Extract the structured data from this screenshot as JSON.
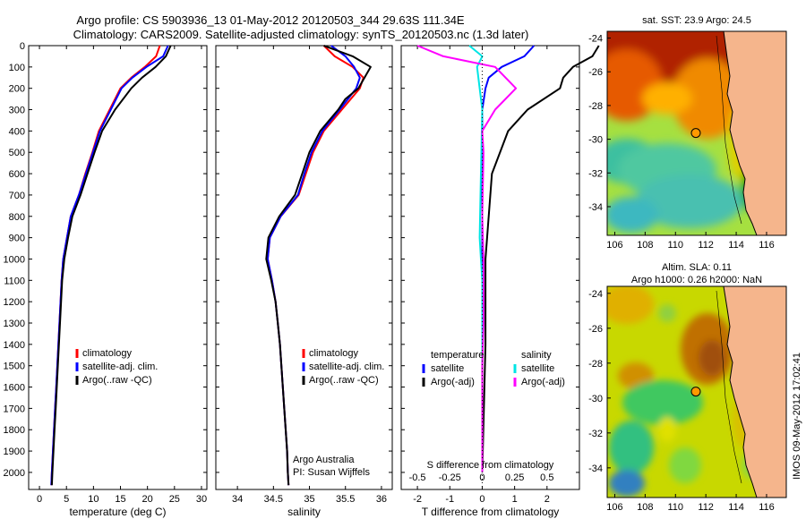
{
  "header": {
    "title_line1": "Argo profile: CS 5903936_13 01-May-2012 20120503_344 29.63S 111.34E",
    "title_line2": "Climatology: CARS2009. Satellite-adjusted climatology: synTS_20120503.nc (1.3d later)"
  },
  "watermark": "IMOS 09-May-2012 17:02:41",
  "chart_data": [
    {
      "type": "line",
      "id": "temperature",
      "xlabel": "temperature (deg C)",
      "xlim": [
        -2,
        31
      ],
      "xticks": [
        0,
        5,
        10,
        15,
        20,
        25,
        30
      ],
      "xtick_labels": [
        "0",
        "5",
        "10",
        "15",
        "20",
        "25",
        "30"
      ],
      "ylim": [
        0,
        2080
      ],
      "y_reversed": true,
      "yticks": [
        0,
        100,
        200,
        300,
        400,
        500,
        600,
        700,
        800,
        900,
        1000,
        1100,
        1200,
        1300,
        1400,
        1500,
        1600,
        1700,
        1800,
        1900,
        2000
      ],
      "ytick_labels": [
        "0",
        "100",
        "200",
        "300",
        "400",
        "500",
        "600",
        "700",
        "800",
        "900",
        "1000",
        "1100",
        "1200",
        "1300",
        "1400",
        "1500",
        "1600",
        "1700",
        "1800",
        "1900",
        "2000"
      ],
      "legend": {
        "position": "lower-center",
        "entries": [
          {
            "label": "climatology",
            "color": "#ff0000"
          },
          {
            "label": "satellite-adj. clim.",
            "color": "#0000ff"
          },
          {
            "label": "Argo(..raw -QC)",
            "color": "#000000"
          }
        ]
      },
      "series": [
        {
          "name": "climatology",
          "color": "#ff0000",
          "points": [
            [
              22.3,
              0
            ],
            [
              21.6,
              50
            ],
            [
              19.5,
              100
            ],
            [
              17,
              150
            ],
            [
              15,
              200
            ],
            [
              13,
              300
            ],
            [
              11,
              400
            ],
            [
              9.8,
              500
            ],
            [
              8.5,
              600
            ],
            [
              7.3,
              700
            ],
            [
              5.8,
              800
            ],
            [
              5.1,
              900
            ],
            [
              4.4,
              1000
            ],
            [
              4.1,
              1100
            ],
            [
              3.9,
              1200
            ],
            [
              3.7,
              1300
            ],
            [
              3.5,
              1400
            ],
            [
              3.3,
              1500
            ],
            [
              3.1,
              1600
            ],
            [
              2.9,
              1700
            ],
            [
              2.7,
              1800
            ],
            [
              2.5,
              1900
            ],
            [
              2.3,
              2000
            ],
            [
              2.2,
              2060
            ]
          ]
        },
        {
          "name": "satellite-adj. clim.",
          "color": "#0000ff",
          "points": [
            [
              23.8,
              0
            ],
            [
              22.9,
              50
            ],
            [
              19.8,
              100
            ],
            [
              17.2,
              150
            ],
            [
              15.2,
              200
            ],
            [
              13.2,
              300
            ],
            [
              11.2,
              400
            ],
            [
              9.9,
              500
            ],
            [
              8.6,
              600
            ],
            [
              7.3,
              700
            ],
            [
              5.8,
              800
            ],
            [
              5.1,
              900
            ],
            [
              4.4,
              1000
            ],
            [
              4.1,
              1100
            ],
            [
              3.9,
              1200
            ],
            [
              3.7,
              1300
            ],
            [
              3.5,
              1400
            ],
            [
              3.3,
              1500
            ],
            [
              3.1,
              1600
            ],
            [
              2.9,
              1700
            ],
            [
              2.7,
              1800
            ],
            [
              2.5,
              1900
            ],
            [
              2.3,
              2000
            ],
            [
              2.2,
              2060
            ]
          ]
        },
        {
          "name": "Argo(..raw -QC)",
          "color": "#000000",
          "points": [
            [
              24.3,
              0
            ],
            [
              23.4,
              50
            ],
            [
              21.5,
              100
            ],
            [
              19,
              150
            ],
            [
              17,
              200
            ],
            [
              14,
              300
            ],
            [
              11.6,
              400
            ],
            [
              10.2,
              500
            ],
            [
              8.9,
              600
            ],
            [
              7.6,
              700
            ],
            [
              6.1,
              800
            ],
            [
              5.3,
              900
            ],
            [
              4.6,
              1000
            ],
            [
              4.2,
              1100
            ],
            [
              4,
              1200
            ],
            [
              3.8,
              1300
            ],
            [
              3.6,
              1400
            ],
            [
              3.4,
              1500
            ],
            [
              3.2,
              1600
            ],
            [
              3,
              1700
            ],
            [
              2.8,
              1800
            ],
            [
              2.6,
              1900
            ],
            [
              2.4,
              2000
            ],
            [
              2.3,
              2060
            ]
          ]
        }
      ]
    },
    {
      "type": "line",
      "id": "salinity",
      "xlabel": "salinity",
      "xlim": [
        33.7,
        36.15
      ],
      "xticks": [
        34,
        34.5,
        35,
        35.5,
        36
      ],
      "xtick_labels": [
        "34",
        "34.5",
        "35",
        "35.5",
        "36"
      ],
      "ylim": [
        0,
        2080
      ],
      "y_reversed": true,
      "legend": {
        "position": "lower-center",
        "entries": [
          {
            "label": "climatology",
            "color": "#ff0000"
          },
          {
            "label": "satellite-adj. clim.",
            "color": "#0000ff"
          },
          {
            "label": "Argo(..raw -QC)",
            "color": "#000000"
          }
        ]
      },
      "annotations": [
        "Argo Australia",
        "PI: Susan Wijffels"
      ],
      "series": [
        {
          "name": "climatology",
          "color": "#ff0000",
          "points": [
            [
              35.2,
              0
            ],
            [
              35.35,
              50
            ],
            [
              35.6,
              100
            ],
            [
              35.75,
              150
            ],
            [
              35.7,
              200
            ],
            [
              35.45,
              300
            ],
            [
              35.2,
              400
            ],
            [
              35.05,
              500
            ],
            [
              34.95,
              600
            ],
            [
              34.85,
              700
            ],
            [
              34.6,
              800
            ],
            [
              34.45,
              900
            ],
            [
              34.42,
              1000
            ],
            [
              34.48,
              1100
            ],
            [
              34.53,
              1200
            ],
            [
              34.56,
              1300
            ],
            [
              34.59,
              1400
            ],
            [
              34.61,
              1500
            ],
            [
              34.63,
              1600
            ],
            [
              34.65,
              1700
            ],
            [
              34.67,
              1800
            ],
            [
              34.69,
              1900
            ],
            [
              34.7,
              2000
            ],
            [
              34.71,
              2060
            ]
          ]
        },
        {
          "name": "satellite-adj. clim.",
          "color": "#0000ff",
          "points": [
            [
              35.3,
              0
            ],
            [
              35.5,
              50
            ],
            [
              35.62,
              100
            ],
            [
              35.7,
              150
            ],
            [
              35.65,
              200
            ],
            [
              35.42,
              300
            ],
            [
              35.18,
              400
            ],
            [
              35.03,
              500
            ],
            [
              34.93,
              600
            ],
            [
              34.84,
              700
            ],
            [
              34.6,
              800
            ],
            [
              34.45,
              900
            ],
            [
              34.42,
              1000
            ],
            [
              34.48,
              1100
            ],
            [
              34.53,
              1200
            ],
            [
              34.56,
              1300
            ],
            [
              34.59,
              1400
            ],
            [
              34.61,
              1500
            ],
            [
              34.63,
              1600
            ],
            [
              34.65,
              1700
            ],
            [
              34.67,
              1800
            ],
            [
              34.69,
              1900
            ],
            [
              34.7,
              2000
            ],
            [
              34.71,
              2060
            ]
          ]
        },
        {
          "name": "Argo(..raw -QC)",
          "color": "#000000",
          "points": [
            [
              35.2,
              0
            ],
            [
              35.6,
              50
            ],
            [
              35.85,
              100
            ],
            [
              35.68,
              200
            ],
            [
              35.5,
              250
            ],
            [
              35.4,
              300
            ],
            [
              35.15,
              400
            ],
            [
              35,
              500
            ],
            [
              34.9,
              600
            ],
            [
              34.8,
              700
            ],
            [
              34.58,
              800
            ],
            [
              34.43,
              900
            ],
            [
              34.4,
              1000
            ],
            [
              34.47,
              1100
            ],
            [
              34.53,
              1200
            ],
            [
              34.56,
              1300
            ],
            [
              34.59,
              1400
            ],
            [
              34.61,
              1500
            ],
            [
              34.63,
              1600
            ],
            [
              34.65,
              1700
            ],
            [
              34.67,
              1800
            ],
            [
              34.69,
              1900
            ],
            [
              34.7,
              2000
            ],
            [
              34.71,
              2060
            ]
          ]
        }
      ]
    },
    {
      "type": "line",
      "id": "difference",
      "xlabel": "T difference from climatology",
      "xlabel_top": "S difference from climatology",
      "xlim": [
        -2.5,
        3
      ],
      "xticks": [
        -2,
        -1,
        0,
        1,
        2
      ],
      "xtick_labels": [
        "-2",
        "-1",
        "0",
        "1",
        "2"
      ],
      "secondary_xticks": [
        -0.5,
        -0.25,
        0,
        0.25,
        0.5
      ],
      "secondary_xtick_labels": [
        "-0.5",
        "-0.25",
        "0",
        "0.25",
        "0.5"
      ],
      "secondary_scale": 4,
      "ylim": [
        0,
        2080
      ],
      "y_reversed": true,
      "legend": {
        "position": "lower-center",
        "temperature_title": "temperature",
        "salinity_title": "salinity",
        "temperature_entries": [
          {
            "label": "satellite",
            "color": "#0000ff"
          },
          {
            "label": "Argo(-adj)",
            "color": "#000000"
          }
        ],
        "salinity_entries": [
          {
            "label": "satellite",
            "color": "#00e5e5"
          },
          {
            "label": "Argo(-adj)",
            "color": "#ff00ff"
          }
        ]
      },
      "series": [
        {
          "name": "T satellite",
          "color": "#0000ff",
          "points": [
            [
              1.6,
              0
            ],
            [
              1.3,
              50
            ],
            [
              0.6,
              100
            ],
            [
              0.2,
              150
            ],
            [
              0.1,
              200
            ],
            [
              0,
              300
            ],
            [
              0,
              500
            ],
            [
              0,
              800
            ],
            [
              0,
              1000
            ],
            [
              0,
              2000
            ]
          ]
        },
        {
          "name": "T Argo(-adj)",
          "color": "#000000",
          "points": [
            [
              3.6,
              0
            ],
            [
              3.4,
              50
            ],
            [
              2.8,
              100
            ],
            [
              2.5,
              150
            ],
            [
              2.4,
              200
            ],
            [
              1.4,
              300
            ],
            [
              0.8,
              400
            ],
            [
              0.3,
              600
            ],
            [
              0.2,
              800
            ],
            [
              0.1,
              1000
            ],
            [
              0.1,
              1400
            ],
            [
              0,
              2000
            ]
          ]
        },
        {
          "name": "S satellite",
          "color": "#00e5e5",
          "points": [
            [
              -0.1,
              0
            ],
            [
              0,
              50
            ],
            [
              -0.04,
              100
            ],
            [
              -0.02,
              200
            ],
            [
              0,
              300
            ],
            [
              -0.01,
              600
            ],
            [
              -0.02,
              900
            ],
            [
              -0.01,
              1000
            ],
            [
              0,
              1100
            ],
            [
              0,
              2000
            ]
          ]
        },
        {
          "name": "S Argo(-adj)",
          "color": "#ff00ff",
          "points": [
            [
              -0.5,
              0
            ],
            [
              -0.3,
              50
            ],
            [
              0.1,
              100
            ],
            [
              0.26,
              200
            ],
            [
              0.1,
              300
            ],
            [
              0,
              400
            ],
            [
              0.01,
              500
            ],
            [
              0,
              800
            ],
            [
              0.01,
              1000
            ],
            [
              0.01,
              1300
            ],
            [
              0,
              1500
            ],
            [
              0,
              2000
            ]
          ]
        }
      ]
    },
    {
      "type": "heatmap",
      "id": "sst_map",
      "title": "sat. SST: 23.9 Argo: 24.5",
      "xticks": [
        106,
        108,
        110,
        112,
        114,
        116
      ],
      "xtick_labels": [
        "106",
        "108",
        "110",
        "112",
        "114",
        "116"
      ],
      "yticks": [
        -24,
        -26,
        -28,
        -30,
        -32,
        -34
      ],
      "ytick_labels": [
        "-24",
        "-26",
        "-28",
        "-30",
        "-32",
        "-34"
      ],
      "argo_position": [
        111.34,
        -29.63
      ]
    },
    {
      "type": "heatmap",
      "id": "sla_map",
      "title": "Altim. SLA: 0.11",
      "subtitle": "Argo h1000: 0.26 h2000: NaN",
      "xticks": [
        106,
        108,
        110,
        112,
        114,
        116
      ],
      "xtick_labels": [
        "106",
        "108",
        "110",
        "112",
        "114",
        "116"
      ],
      "yticks": [
        -24,
        -26,
        -28,
        -30,
        -32,
        -34
      ],
      "ytick_labels": [
        "-24",
        "-26",
        "-28",
        "-30",
        "-32",
        "-34"
      ],
      "argo_position": [
        111.34,
        -29.63
      ]
    }
  ]
}
